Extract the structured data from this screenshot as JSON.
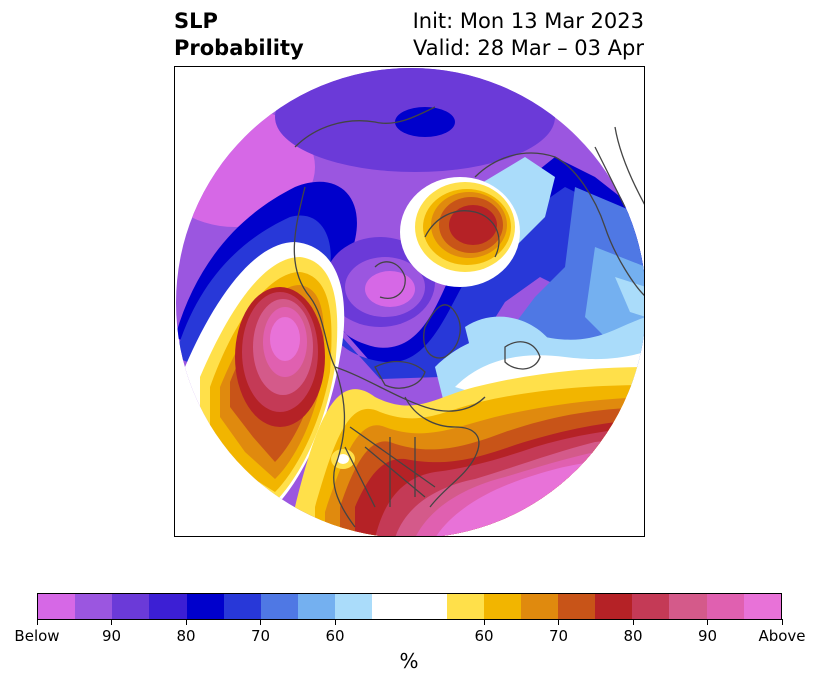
{
  "title": {
    "left_line1": "SLP",
    "left_line2": "Probability",
    "right_line1": "Init: Mon 13 Mar 2023",
    "right_line2": "Valid: 28 Mar – 03 Apr"
  },
  "colorbar": {
    "colors": [
      "#d668e6",
      "#9b56e0",
      "#6b3ad8",
      "#3c1fd4",
      "#0000cc",
      "#2838d8",
      "#4f78e4",
      "#74b0f0",
      "#aadcfa",
      "#ffffff",
      "#ffe04a",
      "#f2b500",
      "#e08a0e",
      "#c85418",
      "#b52226",
      "#c43a56",
      "#d45a8a",
      "#e060b0",
      "#e872d8"
    ],
    "ticks": [
      "Below",
      "90",
      "80",
      "70",
      "60",
      "60",
      "70",
      "80",
      "90",
      "Above"
    ],
    "units": "%"
  }
}
